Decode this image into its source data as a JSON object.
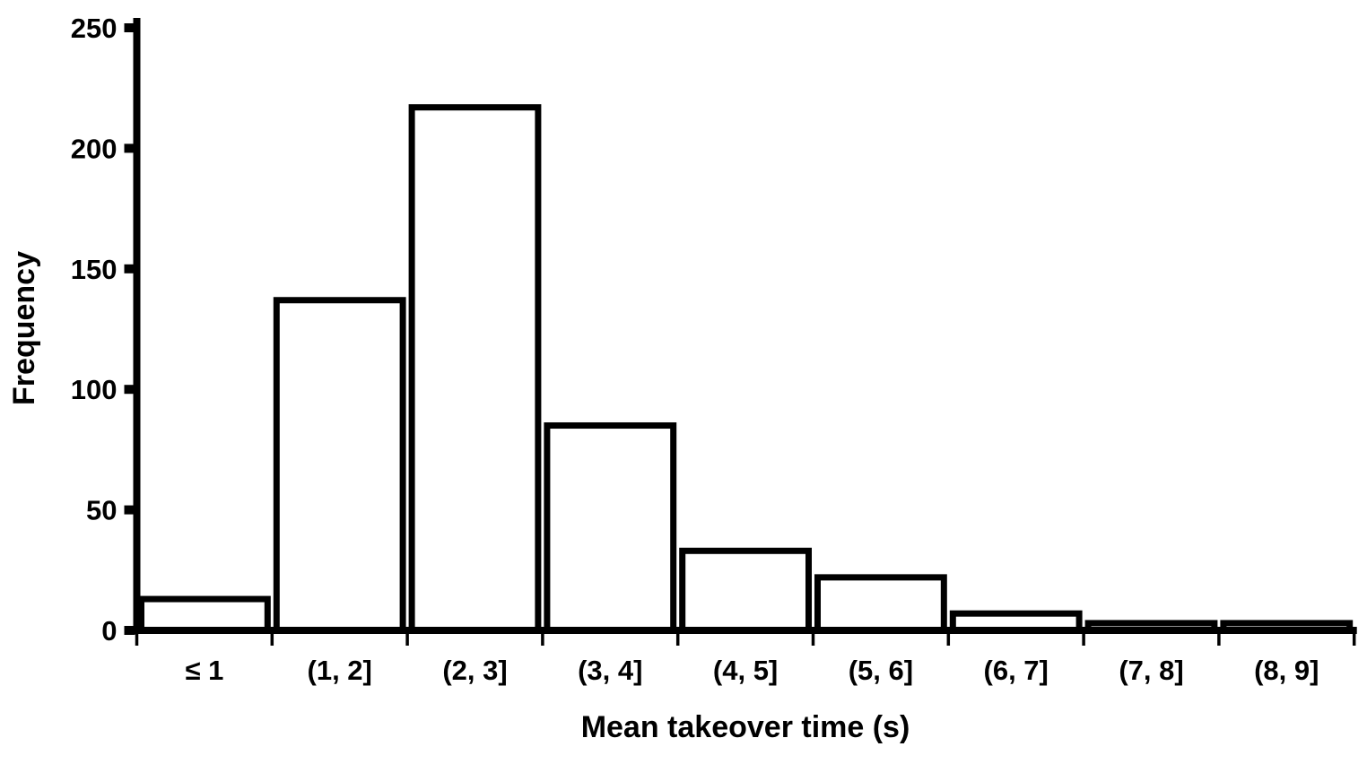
{
  "chart_data": {
    "type": "bar",
    "title": "",
    "categories": [
      "≤ 1",
      "(1, 2]",
      "(2, 3]",
      "(3, 4]",
      "(4, 5]",
      "(5, 6]",
      "(6, 7]",
      "(7, 8]",
      "(8, 9]"
    ],
    "values": [
      13,
      137,
      217,
      85,
      33,
      22,
      7,
      3,
      3
    ],
    "xlabel": "Mean takeover time (s)",
    "ylabel": "Frequency",
    "ylim": [
      0,
      250
    ],
    "yticks": [
      0,
      50,
      100,
      150,
      200,
      250
    ],
    "grid": false,
    "legend": "none",
    "colors": {
      "bar_fill": "#ffffff",
      "bar_stroke": "#000000",
      "axis": "#000000",
      "text": "#000000",
      "background": "#ffffff"
    }
  }
}
